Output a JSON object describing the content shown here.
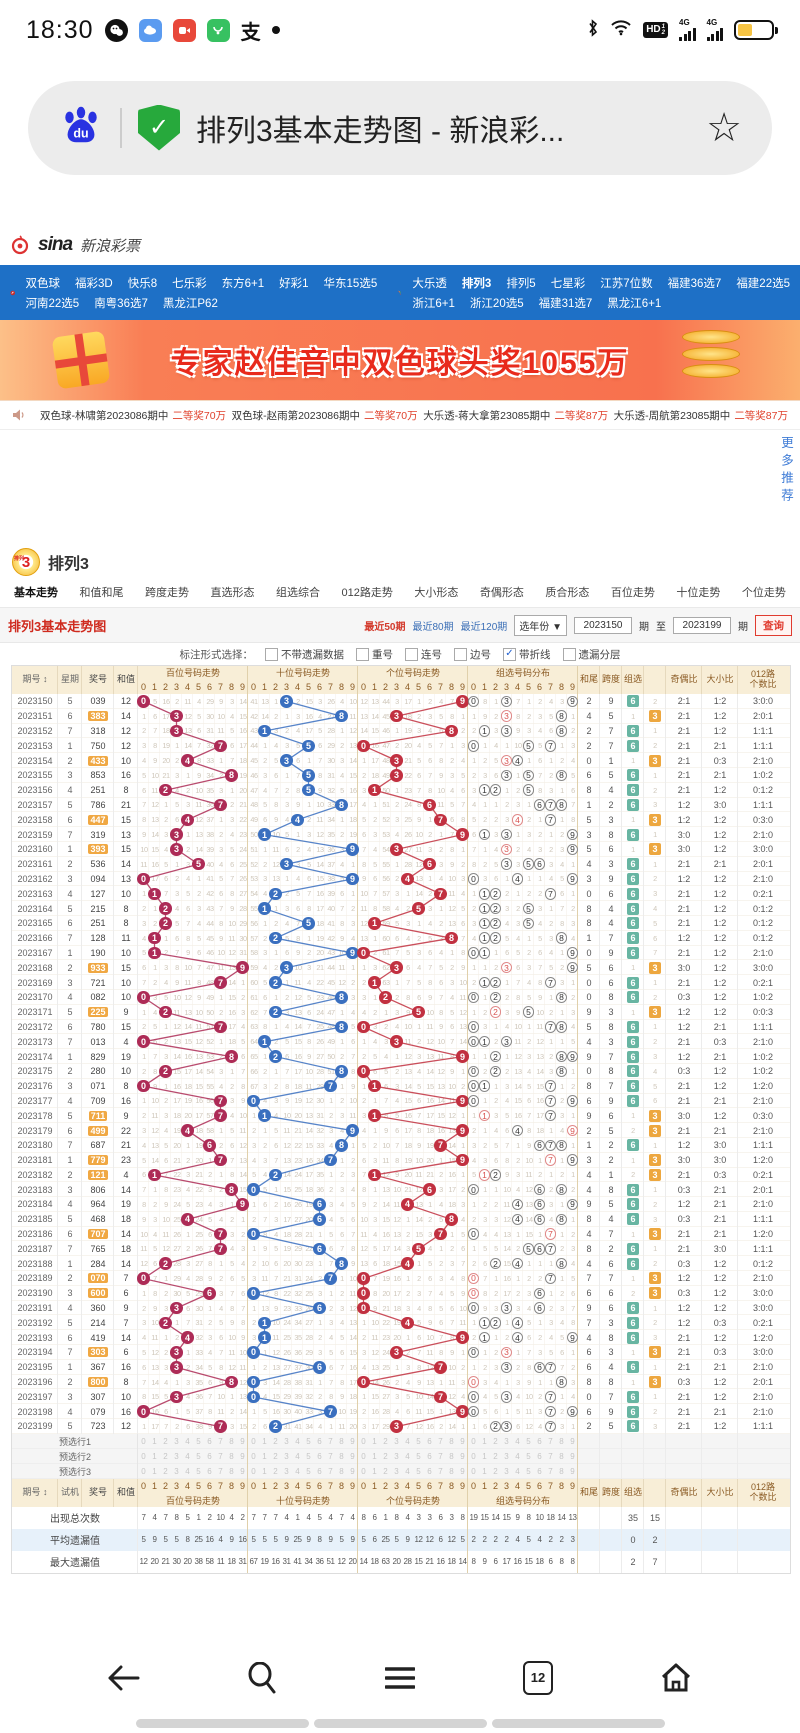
{
  "status_bar": {
    "time": "18:30",
    "icons": [
      "wechat-icon",
      "cloud-app-icon",
      "video-app-icon",
      "green-app-icon",
      "alipay-icon",
      "notification-dot",
      "bluetooth-icon",
      "wifi-icon",
      "hd-voice-icon",
      "signal-4g-icon",
      "signal-4g-icon",
      "battery-icon"
    ]
  },
  "address_bar": {
    "title": "排列3基本走势图 - 新浪彩...",
    "icons": [
      "baidu-icon",
      "secure-shield-icon",
      "star-icon"
    ]
  },
  "site_header": {
    "brand": "sina",
    "brand_cn": "新浪彩票"
  },
  "nav": {
    "active": "排列3",
    "left_row1": [
      "双色球",
      "福彩3D",
      "快乐8",
      "七乐彩",
      "东方6+1",
      "好彩1",
      "华东15选5"
    ],
    "left_row2": [
      "河南22选5",
      "南粤36选7",
      "黑龙江P62"
    ],
    "right_row1": [
      "大乐透",
      "排列3",
      "排列5",
      "七星彩",
      "江苏7位数",
      "福建36选7",
      "福建22选5"
    ],
    "right_row2": [
      "浙江6+1",
      "浙江20选5",
      "福建31选7",
      "黑龙江6+1"
    ]
  },
  "banner": {
    "text": "专家赵佳音中双色球头奖1055万"
  },
  "ticker": {
    "items": [
      {
        "text": "双色球-林啸第2023086期中",
        "amount": "二等奖70万"
      },
      {
        "text": "双色球-赵雨第2023086期中",
        "amount": "二等奖70万"
      },
      {
        "text": "大乐透-蒋大拿第23085期中",
        "amount": "二等奖87万"
      },
      {
        "text": "大乐透-周航第23085期中",
        "amount": "二等奖87万"
      }
    ]
  },
  "more_link": "更多推荐",
  "lottery": {
    "name": "排列3",
    "logo_digit": "3",
    "logo_small": "排列"
  },
  "tabs": {
    "active": "基本走势",
    "items": [
      "基本走势",
      "和值和尾",
      "跨度走势",
      "直选形态",
      "组选综合",
      "012路走势",
      "大小形态",
      "奇偶形态",
      "质合形态",
      "百位走势",
      "十位走势",
      "个位走势"
    ]
  },
  "toolbar": {
    "title": "排列3基本走势图",
    "ranges": [
      "最近50期",
      "最近80期",
      "最近120期"
    ],
    "active_range": "最近50期",
    "year_select": "选年份 ▼",
    "from": "2023150",
    "period_label": "期",
    "to_label": "至",
    "to": "2023199",
    "search_label": "查询"
  },
  "options": {
    "label": "标注形式选择：",
    "checkboxes": [
      {
        "label": "不带遗漏数据",
        "checked": false
      },
      {
        "label": "重号",
        "checked": false
      },
      {
        "label": "连号",
        "checked": false
      },
      {
        "label": "边号",
        "checked": false
      },
      {
        "label": "带折线",
        "checked": true
      },
      {
        "label": "遗漏分层",
        "checked": false
      }
    ]
  },
  "table": {
    "header": {
      "period": "期号",
      "sort": "↕",
      "week": "星期",
      "trial": "试机",
      "number": "奖号",
      "sum": "和值",
      "zones": [
        "百位号码走势",
        "十位号码走势",
        "个位号码走势",
        "组选号码分布"
      ],
      "digits": [
        "0",
        "1",
        "2",
        "3",
        "4",
        "5",
        "6",
        "7",
        "8",
        "9"
      ],
      "tail": "和尾",
      "span": "跨度",
      "group": "组选",
      "odd_even": "奇偶比",
      "big_small": "大小比",
      "route1": "012路",
      "route2": "个数比"
    },
    "rows": [
      [
        "2023150",
        "5",
        "039",
        12,
        2,
        9,
        6,
        "2:1",
        "1:2",
        "3:0:0"
      ],
      [
        "2023151",
        "6",
        "383",
        14,
        4,
        5,
        3,
        "2:1",
        "1:2",
        "2:0:1"
      ],
      [
        "2023152",
        "7",
        "318",
        12,
        2,
        7,
        6,
        "2:1",
        "1:2",
        "1:1:1"
      ],
      [
        "2023153",
        "1",
        "750",
        12,
        2,
        7,
        6,
        "2:1",
        "2:1",
        "1:1:1"
      ],
      [
        "2023154",
        "2",
        "433",
        10,
        0,
        1,
        3,
        "2:1",
        "0:3",
        "2:1:0"
      ],
      [
        "2023155",
        "3",
        "853",
        16,
        6,
        5,
        6,
        "2:1",
        "2:1",
        "1:0:2"
      ],
      [
        "2023156",
        "4",
        "251",
        8,
        8,
        4,
        6,
        "2:1",
        "1:2",
        "0:1:2"
      ],
      [
        "2023157",
        "5",
        "786",
        21,
        1,
        2,
        6,
        "1:2",
        "3:0",
        "1:1:1"
      ],
      [
        "2023158",
        "6",
        "447",
        15,
        5,
        3,
        3,
        "1:2",
        "1:2",
        "0:3:0"
      ],
      [
        "2023159",
        "7",
        "319",
        13,
        3,
        8,
        6,
        "3:0",
        "1:2",
        "2:1:0"
      ],
      [
        "2023160",
        "1",
        "393",
        15,
        5,
        6,
        3,
        "3:0",
        "1:2",
        "3:0:0"
      ],
      [
        "2023161",
        "2",
        "536",
        14,
        4,
        3,
        6,
        "2:1",
        "2:1",
        "2:0:1"
      ],
      [
        "2023162",
        "3",
        "094",
        13,
        3,
        9,
        6,
        "1:2",
        "1:2",
        "2:1:0"
      ],
      [
        "2023163",
        "4",
        "127",
        10,
        0,
        6,
        6,
        "2:1",
        "1:2",
        "0:2:1"
      ],
      [
        "2023164",
        "5",
        "215",
        8,
        8,
        4,
        6,
        "2:1",
        "1:2",
        "0:1:2"
      ],
      [
        "2023165",
        "6",
        "251",
        8,
        8,
        4,
        6,
        "2:1",
        "1:2",
        "0:1:2"
      ],
      [
        "2023166",
        "7",
        "128",
        11,
        1,
        7,
        6,
        "1:2",
        "1:2",
        "0:1:2"
      ],
      [
        "2023167",
        "1",
        "190",
        10,
        0,
        9,
        6,
        "2:1",
        "1:2",
        "2:1:0"
      ],
      [
        "2023168",
        "2",
        "933",
        15,
        5,
        6,
        3,
        "3:0",
        "1:2",
        "3:0:0"
      ],
      [
        "2023169",
        "3",
        "721",
        10,
        0,
        6,
        6,
        "2:1",
        "1:2",
        "0:2:1"
      ],
      [
        "2023170",
        "4",
        "082",
        10,
        0,
        8,
        6,
        "0:3",
        "1:2",
        "1:0:2"
      ],
      [
        "2023171",
        "5",
        "225",
        9,
        9,
        3,
        3,
        "1:2",
        "1:2",
        "0:0:3"
      ],
      [
        "2023172",
        "6",
        "780",
        15,
        5,
        8,
        6,
        "1:2",
        "2:1",
        "1:1:1"
      ],
      [
        "2023173",
        "7",
        "013",
        4,
        4,
        3,
        6,
        "2:1",
        "0:3",
        "2:1:0"
      ],
      [
        "2023174",
        "1",
        "829",
        19,
        9,
        7,
        6,
        "1:2",
        "2:1",
        "1:0:2"
      ],
      [
        "2023175",
        "2",
        "280",
        10,
        0,
        8,
        6,
        "0:3",
        "1:2",
        "1:0:2"
      ],
      [
        "2023176",
        "3",
        "071",
        8,
        8,
        7,
        6,
        "2:1",
        "1:2",
        "1:2:0"
      ],
      [
        "2023177",
        "4",
        "709",
        16,
        6,
        9,
        6,
        "2:1",
        "2:1",
        "2:1:0"
      ],
      [
        "2023178",
        "5",
        "711",
        9,
        9,
        6,
        3,
        "3:0",
        "1:2",
        "0:3:0"
      ],
      [
        "2023179",
        "6",
        "499",
        22,
        2,
        5,
        3,
        "2:1",
        "2:1",
        "2:1:0"
      ],
      [
        "2023180",
        "7",
        "687",
        21,
        1,
        2,
        6,
        "1:2",
        "3:0",
        "1:1:1"
      ],
      [
        "2023181",
        "1",
        "779",
        23,
        3,
        2,
        3,
        "3:0",
        "3:0",
        "1:2:0"
      ],
      [
        "2023182",
        "2",
        "121",
        4,
        4,
        1,
        3,
        "2:1",
        "0:3",
        "0:2:1"
      ],
      [
        "2023183",
        "3",
        "806",
        14,
        4,
        8,
        6,
        "0:3",
        "2:1",
        "2:0:1"
      ],
      [
        "2023184",
        "4",
        "964",
        19,
        9,
        5,
        6,
        "1:2",
        "2:1",
        "2:1:0"
      ],
      [
        "2023185",
        "5",
        "468",
        18,
        8,
        4,
        6,
        "0:3",
        "2:1",
        "1:1:1"
      ],
      [
        "2023186",
        "6",
        "707",
        14,
        4,
        7,
        3,
        "2:1",
        "2:1",
        "1:2:0"
      ],
      [
        "2023187",
        "7",
        "765",
        18,
        8,
        2,
        6,
        "2:1",
        "3:0",
        "1:1:1"
      ],
      [
        "2023188",
        "1",
        "284",
        14,
        4,
        6,
        6,
        "0:3",
        "1:2",
        "0:1:2"
      ],
      [
        "2023189",
        "2",
        "070",
        7,
        7,
        7,
        3,
        "1:2",
        "1:2",
        "2:1:0"
      ],
      [
        "2023190",
        "3",
        "600",
        6,
        6,
        6,
        3,
        "0:3",
        "1:2",
        "3:0:0"
      ],
      [
        "2023191",
        "4",
        "360",
        9,
        9,
        6,
        6,
        "1:2",
        "1:2",
        "3:0:0"
      ],
      [
        "2023192",
        "5",
        "214",
        7,
        7,
        3,
        6,
        "1:2",
        "0:3",
        "0:2:1"
      ],
      [
        "2023193",
        "6",
        "419",
        14,
        4,
        8,
        6,
        "2:1",
        "1:2",
        "1:2:0"
      ],
      [
        "2023194",
        "7",
        "303",
        6,
        6,
        3,
        3,
        "2:1",
        "0:3",
        "3:0:0"
      ],
      [
        "2023195",
        "1",
        "367",
        16,
        6,
        4,
        6,
        "2:1",
        "2:1",
        "2:1:0"
      ],
      [
        "2023196",
        "2",
        "800",
        8,
        8,
        8,
        3,
        "0:3",
        "1:2",
        "2:0:1"
      ],
      [
        "2023197",
        "3",
        "307",
        10,
        0,
        7,
        6,
        "2:1",
        "1:2",
        "2:1:0"
      ],
      [
        "2023198",
        "4",
        "079",
        16,
        6,
        9,
        6,
        "2:1",
        "2:1",
        "2:1:0"
      ],
      [
        "2023199",
        "5",
        "723",
        12,
        2,
        5,
        6,
        "2:1",
        "1:2",
        "1:1:1"
      ]
    ],
    "miss_seeds": {
      "hundreds": [
        0,
        5,
        16,
        2,
        11,
        4,
        29,
        9,
        3,
        14
      ],
      "tens": [
        41,
        13,
        1,
        0,
        2,
        15,
        3,
        26,
        4,
        10
      ],
      "units": [
        12,
        13,
        44,
        3,
        17,
        1,
        2,
        4,
        7,
        0
      ],
      "group": [
        0,
        8,
        1,
        0,
        7,
        1,
        2,
        4,
        3,
        0
      ],
      "group6": 1,
      "group3": 2
    },
    "preselect_labels": [
      "预选行1",
      "预选行2",
      "预选行3"
    ],
    "summary": [
      {
        "label": "出现总次数",
        "hundreds": [
          7,
          4,
          7,
          8,
          5,
          1,
          2,
          10,
          4,
          2
        ],
        "tens": [
          7,
          7,
          7,
          4,
          1,
          4,
          5,
          4,
          7,
          4
        ],
        "units": [
          8,
          6,
          1,
          8,
          4,
          3,
          3,
          6,
          3,
          8
        ],
        "group": [
          19,
          15,
          14,
          15,
          9,
          8,
          10,
          18,
          14,
          13
        ],
        "group6": "35",
        "group3": "15"
      },
      {
        "label": "平均遗漏值",
        "hundreds": [
          5,
          9,
          5,
          5,
          8,
          25,
          16,
          4,
          9,
          16
        ],
        "tens": [
          5,
          5,
          5,
          9,
          25,
          9,
          8,
          9,
          5,
          9
        ],
        "units": [
          5,
          6,
          25,
          5,
          9,
          12,
          12,
          6,
          12,
          5
        ],
        "group": [
          2,
          2,
          2,
          2,
          4,
          5,
          4,
          2,
          2,
          3
        ],
        "group6": "0",
        "group3": "2"
      },
      {
        "label": "最大遗漏值",
        "hundreds": [
          12,
          20,
          21,
          30,
          20,
          38,
          58,
          11,
          18,
          31
        ],
        "tens": [
          67,
          19,
          16,
          31,
          41,
          34,
          36,
          51,
          12,
          20
        ],
        "units": [
          14,
          18,
          63,
          20,
          28,
          15,
          21,
          16,
          18,
          14
        ],
        "group": [
          8,
          9,
          6,
          17,
          16,
          15,
          18,
          6,
          8,
          8
        ],
        "group6": "2",
        "group3": "7"
      }
    ]
  },
  "browser_nav": {
    "tab_count": "12",
    "icons": [
      "back-icon",
      "search-icon",
      "menu-icon",
      "tabs-icon",
      "home-icon"
    ]
  },
  "colors": {
    "nav_blue": "#1e70c6",
    "accent_red": "#cf2a1e",
    "link_blue": "#3b6fb6",
    "ball_hundreds": "#ad2b56",
    "ball_tens": "#3a6fbf",
    "ball_units": "#c13040",
    "group6_green": "#68b5a2",
    "group3_orange": "#eda73f"
  }
}
